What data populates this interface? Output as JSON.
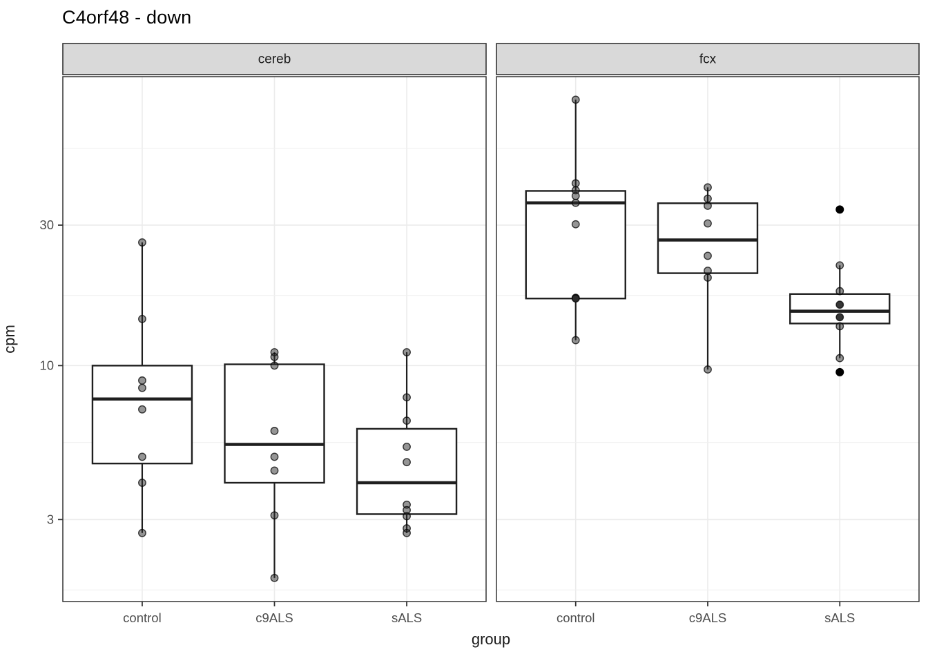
{
  "title": "C4orf48 - down",
  "colors": {
    "strip_fill": "#d9d9d9",
    "strip_border": "#333333",
    "panel_border": "#333333",
    "grid_major": "#ebebeb",
    "grid_minor": "#f0f0f0",
    "box_stroke": "#1f1f1f",
    "axis_text": "#4d4d4d",
    "axis_tick": "#333333",
    "point_fill": "#2b2b2b",
    "outlier_fill": "#000000",
    "background": "#ffffff"
  },
  "chart_data": {
    "type": "boxplot",
    "scale": "log10",
    "title": "C4orf48 - down",
    "xlabel": "group",
    "ylabel": "cpm",
    "y_ticks": [
      30,
      10,
      3
    ],
    "y_minor_gridlines": [
      54.77,
      17.32,
      5.48,
      1.73
    ],
    "ylim": [
      1.58,
      95.8
    ],
    "grid": true,
    "categories": [
      "control",
      "c9ALS",
      "sALS"
    ],
    "facets": [
      {
        "label": "cereb",
        "groups": [
          {
            "category": "control",
            "box": {
              "q1": 4.65,
              "median": 7.7,
              "q3": 10.0,
              "whisker_low": 2.7,
              "whisker_high": 26.2
            },
            "points": [
              {
                "v": 26.2
              },
              {
                "v": 14.4
              },
              {
                "v": 8.9
              },
              {
                "v": 8.4
              },
              {
                "v": 7.1
              },
              {
                "v": 4.9
              },
              {
                "v": 4.0
              },
              {
                "v": 2.7
              }
            ]
          },
          {
            "category": "c9ALS",
            "box": {
              "q1": 4.0,
              "median": 5.4,
              "q3": 10.1,
              "whisker_low": 1.9,
              "whisker_high": 11.1
            },
            "points": [
              {
                "v": 11.1
              },
              {
                "v": 10.7
              },
              {
                "v": 10.0
              },
              {
                "v": 6.0
              },
              {
                "v": 4.9
              },
              {
                "v": 4.4
              },
              {
                "v": 3.1
              },
              {
                "v": 1.9
              }
            ]
          },
          {
            "category": "sALS",
            "box": {
              "q1": 3.13,
              "median": 4.0,
              "q3": 6.1,
              "whisker_low": 2.7,
              "whisker_high": 11.1
            },
            "points": [
              {
                "v": 11.1
              },
              {
                "v": 7.8
              },
              {
                "v": 6.5
              },
              {
                "v": 5.3
              },
              {
                "v": 4.7
              },
              {
                "v": 3.37
              },
              {
                "v": 3.23
              },
              {
                "v": 3.08
              },
              {
                "v": 2.8
              },
              {
                "v": 2.7
              }
            ]
          }
        ]
      },
      {
        "label": "fcx",
        "groups": [
          {
            "category": "control",
            "box": {
              "q1": 16.9,
              "median": 35.7,
              "q3": 39.2,
              "whisker_low": 12.2,
              "whisker_high": 80.0
            },
            "points": [
              {
                "v": 80.0
              },
              {
                "v": 41.6
              },
              {
                "v": 39.4
              },
              {
                "v": 37.7
              },
              {
                "v": 35.7
              },
              {
                "v": 30.2
              },
              {
                "v": 17.0,
                "dark": true
              },
              {
                "v": 16.9,
                "dark": true
              },
              {
                "v": 12.2
              }
            ]
          },
          {
            "category": "c9ALS",
            "box": {
              "q1": 20.6,
              "median": 26.7,
              "q3": 35.6,
              "whisker_low": 9.7,
              "whisker_high": 40.3
            },
            "points": [
              {
                "v": 40.3
              },
              {
                "v": 36.9
              },
              {
                "v": 34.9
              },
              {
                "v": 30.4
              },
              {
                "v": 23.6
              },
              {
                "v": 21.0
              },
              {
                "v": 19.9
              },
              {
                "v": 9.7
              }
            ]
          },
          {
            "category": "sALS",
            "box": {
              "q1": 13.9,
              "median": 15.3,
              "q3": 17.5,
              "whisker_low": 10.6,
              "whisker_high": 21.9
            },
            "points": [
              {
                "v": 33.9,
                "outlier": true
              },
              {
                "v": 21.9
              },
              {
                "v": 17.9
              },
              {
                "v": 16.1,
                "dark": true
              },
              {
                "v": 14.6,
                "dark": true
              },
              {
                "v": 13.6
              },
              {
                "v": 10.6
              },
              {
                "v": 9.5,
                "outlier": true
              }
            ]
          }
        ]
      }
    ]
  }
}
